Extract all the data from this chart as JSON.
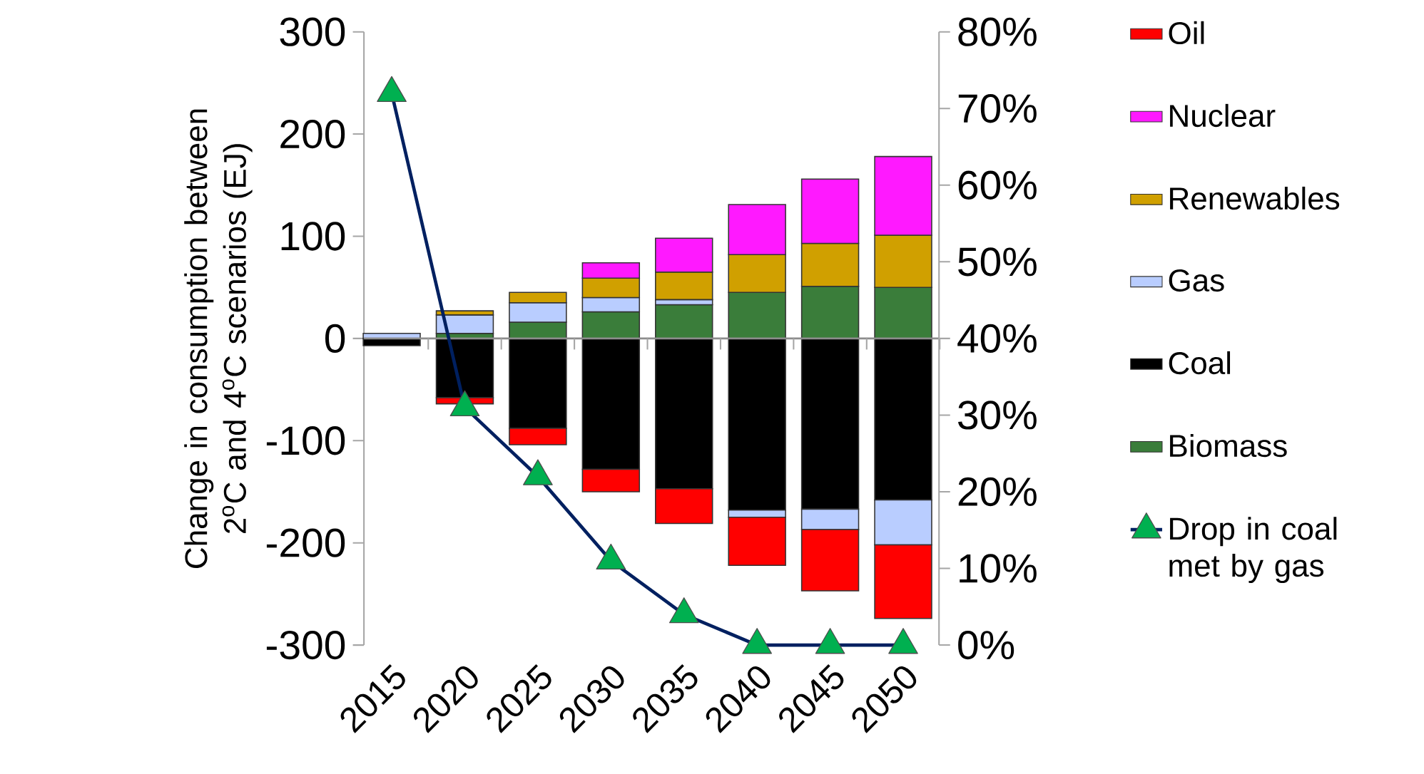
{
  "chart_data": {
    "type": "bar",
    "stacked": true,
    "ylabel": "Change in consumption between 2$^{o}$C and 4$^{o}$C scenarios (EJ)",
    "categories": [
      "2015",
      "2020",
      "2025",
      "2030",
      "2035",
      "2040",
      "2045",
      "2050"
    ],
    "ylim": [
      -300,
      300
    ],
    "yticks": [
      -300,
      -200,
      -100,
      0,
      100,
      200,
      300
    ],
    "y2lim": [
      0,
      80
    ],
    "y2ticks": [
      {
        "value": 0,
        "label": "0%"
      },
      {
        "value": 10,
        "label": "10%"
      },
      {
        "value": 20,
        "label": "20%"
      },
      {
        "value": 30,
        "label": "30%"
      },
      {
        "value": 40,
        "label": "40%"
      },
      {
        "value": 50,
        "label": "50%"
      },
      {
        "value": 60,
        "label": "60%"
      },
      {
        "value": 70,
        "label": "70%"
      },
      {
        "value": 80,
        "label": "80%"
      }
    ],
    "legend": "right",
    "series": [
      {
        "name": "Biomass",
        "color": "#3a7d3a",
        "values": [
          null,
          5,
          16,
          26,
          33,
          45,
          51,
          50
        ]
      },
      {
        "name": "Coal",
        "color": "#000000",
        "values": [
          -7,
          -58,
          -88,
          -128,
          -147,
          -168,
          -167,
          -158
        ]
      },
      {
        "name": "Gas",
        "color": "#b9cdff",
        "values": [
          5,
          18,
          19,
          14,
          5,
          -7,
          -20,
          -44
        ]
      },
      {
        "name": "Renewables",
        "color": "#d0a000",
        "values": [
          null,
          4,
          10,
          19,
          27,
          37,
          42,
          51
        ]
      },
      {
        "name": "Nuclear",
        "color": "#ff19ff",
        "values": [
          null,
          null,
          null,
          15,
          33,
          49,
          63,
          77
        ]
      },
      {
        "name": "Oil",
        "color": "#ff0000",
        "values": [
          null,
          -6,
          -16,
          -22,
          -34,
          -47,
          -60,
          -72
        ]
      },
      {
        "name": "Drop in coal met by gas",
        "type": "line",
        "axis": "y2",
        "marker": "triangle",
        "color": "#002060",
        "values": [
          72,
          31,
          22,
          11,
          4,
          0,
          0,
          0
        ]
      }
    ]
  }
}
